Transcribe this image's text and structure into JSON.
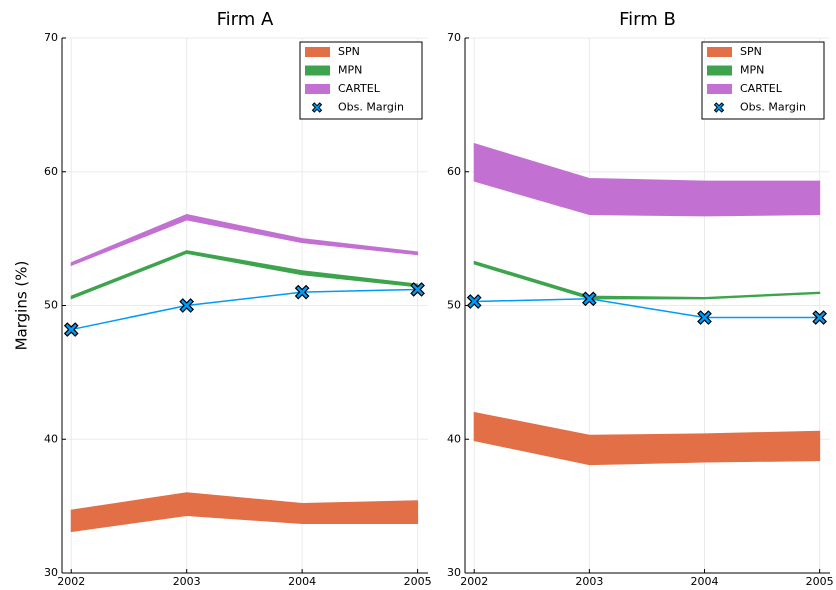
{
  "chart_data": [
    {
      "type": "band",
      "title": "Firm A",
      "ylabel": "Margins (%)",
      "x": [
        2002,
        2003,
        2004,
        2005
      ],
      "xlim": [
        2001.92,
        2005.09
      ],
      "xticks": [
        2002,
        2003,
        2004,
        2005
      ],
      "ylim": [
        30,
        70
      ],
      "yticks": [
        30,
        40,
        50,
        60,
        70
      ],
      "grid": true,
      "legend": "upper right",
      "series": [
        {
          "name": "SPN",
          "color": "#e26f46",
          "lower": [
            33.1,
            34.3,
            33.7,
            33.7
          ],
          "upper": [
            34.7,
            36.0,
            35.2,
            35.4
          ]
        },
        {
          "name": "MPN",
          "color": "#3da44d",
          "lower": [
            50.5,
            53.9,
            52.3,
            51.4
          ],
          "upper": [
            50.7,
            54.1,
            52.6,
            51.6
          ]
        },
        {
          "name": "CARTEL",
          "color": "#c271d2",
          "lower": [
            53.0,
            56.4,
            54.7,
            53.8
          ],
          "upper": [
            53.2,
            56.8,
            55.0,
            54.0
          ]
        },
        {
          "name": "Obs. Margin",
          "color": "#009af9",
          "marker": "xcross",
          "values": [
            48.2,
            50.0,
            51.0,
            51.2
          ]
        }
      ]
    },
    {
      "type": "band",
      "title": "Firm B",
      "x": [
        2002,
        2003,
        2004,
        2005
      ],
      "xlim": [
        2001.92,
        2005.09
      ],
      "xticks": [
        2002,
        2003,
        2004,
        2005
      ],
      "ylim": [
        30,
        70
      ],
      "yticks": [
        30,
        40,
        50,
        60,
        70
      ],
      "grid": true,
      "legend": "upper right",
      "series": [
        {
          "name": "SPN",
          "color": "#e26f46",
          "lower": [
            39.9,
            38.1,
            38.3,
            38.4
          ],
          "upper": [
            42.0,
            40.3,
            40.4,
            40.6
          ]
        },
        {
          "name": "MPN",
          "color": "#3da44d",
          "lower": [
            53.1,
            50.5,
            50.5,
            50.9
          ],
          "upper": [
            53.3,
            50.7,
            50.6,
            51.0
          ]
        },
        {
          "name": "CARTEL",
          "color": "#c271d2",
          "lower": [
            59.3,
            56.8,
            56.7,
            56.8
          ],
          "upper": [
            62.1,
            59.5,
            59.3,
            59.3
          ]
        },
        {
          "name": "Obs. Margin",
          "color": "#009af9",
          "marker": "xcross",
          "values": [
            50.3,
            50.5,
            49.1,
            49.1
          ]
        }
      ]
    }
  ]
}
